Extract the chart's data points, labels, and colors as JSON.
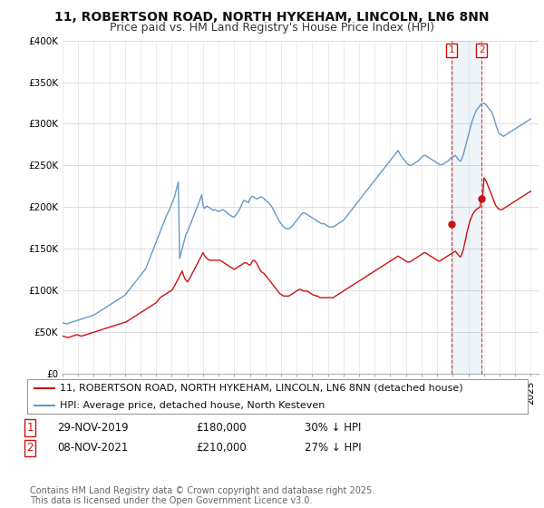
{
  "title_line1": "11, ROBERTSON ROAD, NORTH HYKEHAM, LINCOLN, LN6 8NN",
  "title_line2": "Price paid vs. HM Land Registry's House Price Index (HPI)",
  "ylim": [
    0,
    400000
  ],
  "yticks": [
    0,
    50000,
    100000,
    150000,
    200000,
    250000,
    300000,
    350000,
    400000
  ],
  "ytick_labels": [
    "£0",
    "£50K",
    "£100K",
    "£150K",
    "£200K",
    "£250K",
    "£300K",
    "£350K",
    "£400K"
  ],
  "xlim_start": 1995.0,
  "xlim_end": 2025.5,
  "background_color": "#ffffff",
  "plot_bg_color": "#ffffff",
  "grid_color": "#dddddd",
  "red_line_color": "#cc1111",
  "blue_line_color": "#6699cc",
  "transaction1": {
    "date_x": 2019.92,
    "price": 180000,
    "label": "1"
  },
  "transaction2": {
    "date_x": 2021.85,
    "price": 210000,
    "label": "2"
  },
  "legend_label_red": "11, ROBERTSON ROAD, NORTH HYKEHAM, LINCOLN, LN6 8NN (detached house)",
  "legend_label_blue": "HPI: Average price, detached house, North Kesteven",
  "footnote": "Contains HM Land Registry data © Crown copyright and database right 2025.\nThis data is licensed under the Open Government Licence v3.0.",
  "title_fontsize": 10,
  "subtitle_fontsize": 9,
  "tick_fontsize": 7.5,
  "legend_fontsize": 8,
  "annot_fontsize": 8.5,
  "footnote_fontsize": 7,
  "hpi_blue_x": [
    1995.0,
    1995.083,
    1995.167,
    1995.25,
    1995.333,
    1995.417,
    1995.5,
    1995.583,
    1995.667,
    1995.75,
    1995.833,
    1995.917,
    1996.0,
    1996.083,
    1996.167,
    1996.25,
    1996.333,
    1996.417,
    1996.5,
    1996.583,
    1996.667,
    1996.75,
    1996.833,
    1996.917,
    1997.0,
    1997.083,
    1997.167,
    1997.25,
    1997.333,
    1997.417,
    1997.5,
    1997.583,
    1997.667,
    1997.75,
    1997.833,
    1997.917,
    1998.0,
    1998.083,
    1998.167,
    1998.25,
    1998.333,
    1998.417,
    1998.5,
    1998.583,
    1998.667,
    1998.75,
    1998.833,
    1998.917,
    1999.0,
    1999.083,
    1999.167,
    1999.25,
    1999.333,
    1999.417,
    1999.5,
    1999.583,
    1999.667,
    1999.75,
    1999.833,
    1999.917,
    2000.0,
    2000.083,
    2000.167,
    2000.25,
    2000.333,
    2000.417,
    2000.5,
    2000.583,
    2000.667,
    2000.75,
    2000.833,
    2000.917,
    2001.0,
    2001.083,
    2001.167,
    2001.25,
    2001.333,
    2001.417,
    2001.5,
    2001.583,
    2001.667,
    2001.75,
    2001.833,
    2001.917,
    2002.0,
    2002.083,
    2002.167,
    2002.25,
    2002.333,
    2002.417,
    2002.5,
    2002.583,
    2002.667,
    2002.75,
    2002.833,
    2002.917,
    2003.0,
    2003.083,
    2003.167,
    2003.25,
    2003.333,
    2003.417,
    2003.5,
    2003.583,
    2003.667,
    2003.75,
    2003.833,
    2003.917,
    2004.0,
    2004.083,
    2004.167,
    2004.25,
    2004.333,
    2004.417,
    2004.5,
    2004.583,
    2004.667,
    2004.75,
    2004.833,
    2004.917,
    2005.0,
    2005.083,
    2005.167,
    2005.25,
    2005.333,
    2005.417,
    2005.5,
    2005.583,
    2005.667,
    2005.75,
    2005.833,
    2005.917,
    2006.0,
    2006.083,
    2006.167,
    2006.25,
    2006.333,
    2006.417,
    2006.5,
    2006.583,
    2006.667,
    2006.75,
    2006.833,
    2006.917,
    2007.0,
    2007.083,
    2007.167,
    2007.25,
    2007.333,
    2007.417,
    2007.5,
    2007.583,
    2007.667,
    2007.75,
    2007.833,
    2007.917,
    2008.0,
    2008.083,
    2008.167,
    2008.25,
    2008.333,
    2008.417,
    2008.5,
    2008.583,
    2008.667,
    2008.75,
    2008.833,
    2008.917,
    2009.0,
    2009.083,
    2009.167,
    2009.25,
    2009.333,
    2009.417,
    2009.5,
    2009.583,
    2009.667,
    2009.75,
    2009.833,
    2009.917,
    2010.0,
    2010.083,
    2010.167,
    2010.25,
    2010.333,
    2010.417,
    2010.5,
    2010.583,
    2010.667,
    2010.75,
    2010.833,
    2010.917,
    2011.0,
    2011.083,
    2011.167,
    2011.25,
    2011.333,
    2011.417,
    2011.5,
    2011.583,
    2011.667,
    2011.75,
    2011.833,
    2011.917,
    2012.0,
    2012.083,
    2012.167,
    2012.25,
    2012.333,
    2012.417,
    2012.5,
    2012.583,
    2012.667,
    2012.75,
    2012.833,
    2012.917,
    2013.0,
    2013.083,
    2013.167,
    2013.25,
    2013.333,
    2013.417,
    2013.5,
    2013.583,
    2013.667,
    2013.75,
    2013.833,
    2013.917,
    2014.0,
    2014.083,
    2014.167,
    2014.25,
    2014.333,
    2014.417,
    2014.5,
    2014.583,
    2014.667,
    2014.75,
    2014.833,
    2014.917,
    2015.0,
    2015.083,
    2015.167,
    2015.25,
    2015.333,
    2015.417,
    2015.5,
    2015.583,
    2015.667,
    2015.75,
    2015.833,
    2015.917,
    2016.0,
    2016.083,
    2016.167,
    2016.25,
    2016.333,
    2016.417,
    2016.5,
    2016.583,
    2016.667,
    2016.75,
    2016.833,
    2016.917,
    2017.0,
    2017.083,
    2017.167,
    2017.25,
    2017.333,
    2017.417,
    2017.5,
    2017.583,
    2017.667,
    2017.75,
    2017.833,
    2017.917,
    2018.0,
    2018.083,
    2018.167,
    2018.25,
    2018.333,
    2018.417,
    2018.5,
    2018.583,
    2018.667,
    2018.75,
    2018.833,
    2018.917,
    2019.0,
    2019.083,
    2019.167,
    2019.25,
    2019.333,
    2019.417,
    2019.5,
    2019.583,
    2019.667,
    2019.75,
    2019.833,
    2019.917,
    2020.0,
    2020.083,
    2020.167,
    2020.25,
    2020.333,
    2020.417,
    2020.5,
    2020.583,
    2020.667,
    2020.75,
    2020.833,
    2020.917,
    2021.0,
    2021.083,
    2021.167,
    2021.25,
    2021.333,
    2021.417,
    2021.5,
    2021.583,
    2021.667,
    2021.75,
    2021.833,
    2021.917,
    2022.0,
    2022.083,
    2022.167,
    2022.25,
    2022.333,
    2022.417,
    2022.5,
    2022.583,
    2022.667,
    2022.75,
    2022.833,
    2022.917,
    2023.0,
    2023.083,
    2023.167,
    2023.25,
    2023.333,
    2023.417,
    2023.5,
    2023.583,
    2023.667,
    2023.75,
    2023.833,
    2023.917,
    2024.0,
    2024.083,
    2024.167,
    2024.25,
    2024.333,
    2024.417,
    2024.5,
    2024.583,
    2024.667,
    2024.75,
    2024.833,
    2024.917,
    2025.0
  ],
  "hpi_blue_y": [
    61000,
    60500,
    60000,
    59500,
    60000,
    60500,
    61000,
    61500,
    62000,
    62500,
    63000,
    63500,
    64000,
    64500,
    65000,
    65500,
    66000,
    66500,
    67000,
    67500,
    68000,
    68500,
    69000,
    69500,
    70000,
    71000,
    72000,
    73000,
    74000,
    75000,
    76000,
    77000,
    78000,
    79000,
    80000,
    81000,
    82000,
    83000,
    84000,
    85000,
    86000,
    87000,
    88000,
    89000,
    90000,
    91000,
    92000,
    93000,
    94000,
    96000,
    98000,
    100000,
    102000,
    104000,
    106000,
    108000,
    110000,
    112000,
    114000,
    116000,
    118000,
    120000,
    122000,
    124000,
    126000,
    130000,
    134000,
    138000,
    142000,
    146000,
    150000,
    154000,
    158000,
    162000,
    166000,
    170000,
    174000,
    178000,
    182000,
    186000,
    190000,
    193000,
    196000,
    200000,
    204000,
    208000,
    212000,
    218000,
    224000,
    230000,
    138000,
    144000,
    150000,
    156000,
    162000,
    168000,
    170000,
    174000,
    178000,
    182000,
    186000,
    190000,
    194000,
    198000,
    202000,
    206000,
    210000,
    215000,
    202000,
    198000,
    200000,
    201000,
    200000,
    199000,
    198000,
    197000,
    196000,
    197000,
    196000,
    195000,
    195000,
    195000,
    196000,
    197000,
    196000,
    195000,
    194000,
    192000,
    191000,
    190000,
    189000,
    188000,
    188000,
    190000,
    192000,
    194000,
    197000,
    200000,
    204000,
    207000,
    208000,
    207000,
    206000,
    205000,
    210000,
    212000,
    213000,
    212000,
    211000,
    210000,
    210000,
    211000,
    212000,
    212000,
    211000,
    210000,
    208000,
    207000,
    206000,
    204000,
    202000,
    200000,
    197000,
    194000,
    191000,
    188000,
    185000,
    182000,
    180000,
    178000,
    176000,
    175000,
    174000,
    174000,
    174000,
    175000,
    176000,
    178000,
    180000,
    182000,
    184000,
    186000,
    188000,
    190000,
    192000,
    193000,
    193000,
    192000,
    191000,
    190000,
    189000,
    188000,
    187000,
    186000,
    185000,
    184000,
    183000,
    182000,
    181000,
    180000,
    180000,
    180000,
    179000,
    178000,
    177000,
    176000,
    176000,
    176000,
    176000,
    177000,
    178000,
    179000,
    180000,
    181000,
    182000,
    183000,
    184000,
    186000,
    188000,
    190000,
    192000,
    194000,
    196000,
    198000,
    200000,
    202000,
    204000,
    206000,
    208000,
    210000,
    212000,
    214000,
    216000,
    218000,
    220000,
    222000,
    224000,
    226000,
    228000,
    230000,
    232000,
    234000,
    236000,
    238000,
    240000,
    242000,
    244000,
    246000,
    248000,
    250000,
    252000,
    254000,
    256000,
    258000,
    260000,
    262000,
    264000,
    266000,
    268000,
    265000,
    262000,
    260000,
    258000,
    256000,
    254000,
    252000,
    251000,
    250000,
    250000,
    251000,
    252000,
    253000,
    254000,
    255000,
    256000,
    258000,
    260000,
    261000,
    262000,
    262000,
    261000,
    260000,
    259000,
    258000,
    257000,
    256000,
    255000,
    254000,
    253000,
    252000,
    251000,
    251000,
    251000,
    252000,
    253000,
    254000,
    255000,
    256000,
    258000,
    260000,
    260000,
    261000,
    262000,
    260000,
    258000,
    256000,
    255000,
    258000,
    262000,
    268000,
    274000,
    280000,
    286000,
    292000,
    298000,
    304000,
    308000,
    312000,
    316000,
    318000,
    320000,
    322000,
    324000,
    324000,
    325000,
    324000,
    322000,
    320000,
    318000,
    316000,
    314000,
    310000,
    305000,
    300000,
    295000,
    290000,
    288000,
    287000,
    286000,
    285000,
    286000,
    287000,
    288000,
    289000,
    290000,
    291000,
    292000,
    293000,
    294000,
    295000,
    296000,
    297000,
    298000,
    299000,
    300000,
    301000,
    302000,
    303000,
    304000,
    305000,
    306000
  ],
  "red_x": [
    1995.0,
    1995.083,
    1995.167,
    1995.25,
    1995.333,
    1995.417,
    1995.5,
    1995.583,
    1995.667,
    1995.75,
    1995.833,
    1995.917,
    1996.0,
    1996.083,
    1996.167,
    1996.25,
    1996.333,
    1996.417,
    1996.5,
    1996.583,
    1996.667,
    1996.75,
    1996.833,
    1996.917,
    1997.0,
    1997.083,
    1997.167,
    1997.25,
    1997.333,
    1997.417,
    1997.5,
    1997.583,
    1997.667,
    1997.75,
    1997.833,
    1997.917,
    1998.0,
    1998.083,
    1998.167,
    1998.25,
    1998.333,
    1998.417,
    1998.5,
    1998.583,
    1998.667,
    1998.75,
    1998.833,
    1998.917,
    1999.0,
    1999.083,
    1999.167,
    1999.25,
    1999.333,
    1999.417,
    1999.5,
    1999.583,
    1999.667,
    1999.75,
    1999.833,
    1999.917,
    2000.0,
    2000.083,
    2000.167,
    2000.25,
    2000.333,
    2000.417,
    2000.5,
    2000.583,
    2000.667,
    2000.75,
    2000.833,
    2000.917,
    2001.0,
    2001.083,
    2001.167,
    2001.25,
    2001.333,
    2001.417,
    2001.5,
    2001.583,
    2001.667,
    2001.75,
    2001.833,
    2001.917,
    2002.0,
    2002.083,
    2002.167,
    2002.25,
    2002.333,
    2002.417,
    2002.5,
    2002.583,
    2002.667,
    2002.75,
    2002.833,
    2002.917,
    2003.0,
    2003.083,
    2003.167,
    2003.25,
    2003.333,
    2003.417,
    2003.5,
    2003.583,
    2003.667,
    2003.75,
    2003.833,
    2003.917,
    2004.0,
    2004.083,
    2004.167,
    2004.25,
    2004.333,
    2004.417,
    2004.5,
    2004.583,
    2004.667,
    2004.75,
    2004.833,
    2004.917,
    2005.0,
    2005.083,
    2005.167,
    2005.25,
    2005.333,
    2005.417,
    2005.5,
    2005.583,
    2005.667,
    2005.75,
    2005.833,
    2005.917,
    2006.0,
    2006.083,
    2006.167,
    2006.25,
    2006.333,
    2006.417,
    2006.5,
    2006.583,
    2006.667,
    2006.75,
    2006.833,
    2006.917,
    2007.0,
    2007.083,
    2007.167,
    2007.25,
    2007.333,
    2007.417,
    2007.5,
    2007.583,
    2007.667,
    2007.75,
    2007.833,
    2007.917,
    2008.0,
    2008.083,
    2008.167,
    2008.25,
    2008.333,
    2008.417,
    2008.5,
    2008.583,
    2008.667,
    2008.75,
    2008.833,
    2008.917,
    2009.0,
    2009.083,
    2009.167,
    2009.25,
    2009.333,
    2009.417,
    2009.5,
    2009.583,
    2009.667,
    2009.75,
    2009.833,
    2009.917,
    2010.0,
    2010.083,
    2010.167,
    2010.25,
    2010.333,
    2010.417,
    2010.5,
    2010.583,
    2010.667,
    2010.75,
    2010.833,
    2010.917,
    2011.0,
    2011.083,
    2011.167,
    2011.25,
    2011.333,
    2011.417,
    2011.5,
    2011.583,
    2011.667,
    2011.75,
    2011.833,
    2011.917,
    2012.0,
    2012.083,
    2012.167,
    2012.25,
    2012.333,
    2012.417,
    2012.5,
    2012.583,
    2012.667,
    2012.75,
    2012.833,
    2012.917,
    2013.0,
    2013.083,
    2013.167,
    2013.25,
    2013.333,
    2013.417,
    2013.5,
    2013.583,
    2013.667,
    2013.75,
    2013.833,
    2013.917,
    2014.0,
    2014.083,
    2014.167,
    2014.25,
    2014.333,
    2014.417,
    2014.5,
    2014.583,
    2014.667,
    2014.75,
    2014.833,
    2014.917,
    2015.0,
    2015.083,
    2015.167,
    2015.25,
    2015.333,
    2015.417,
    2015.5,
    2015.583,
    2015.667,
    2015.75,
    2015.833,
    2015.917,
    2016.0,
    2016.083,
    2016.167,
    2016.25,
    2016.333,
    2016.417,
    2016.5,
    2016.583,
    2016.667,
    2016.75,
    2016.833,
    2016.917,
    2017.0,
    2017.083,
    2017.167,
    2017.25,
    2017.333,
    2017.417,
    2017.5,
    2017.583,
    2017.667,
    2017.75,
    2017.833,
    2017.917,
    2018.0,
    2018.083,
    2018.167,
    2018.25,
    2018.333,
    2018.417,
    2018.5,
    2018.583,
    2018.667,
    2018.75,
    2018.833,
    2018.917,
    2019.0,
    2019.083,
    2019.167,
    2019.25,
    2019.333,
    2019.417,
    2019.5,
    2019.583,
    2019.667,
    2019.75,
    2019.833,
    2019.917,
    2020.0,
    2020.083,
    2020.167,
    2020.25,
    2020.333,
    2020.417,
    2020.5,
    2020.583,
    2020.667,
    2020.75,
    2020.833,
    2020.917,
    2021.0,
    2021.083,
    2021.167,
    2021.25,
    2021.333,
    2021.417,
    2021.5,
    2021.583,
    2021.667,
    2021.75,
    2021.833,
    2021.917,
    2022.0,
    2022.083,
    2022.167,
    2022.25,
    2022.333,
    2022.417,
    2022.5,
    2022.583,
    2022.667,
    2022.75,
    2022.833,
    2022.917,
    2023.0,
    2023.083,
    2023.167,
    2023.25,
    2023.333,
    2023.417,
    2023.5,
    2023.583,
    2023.667,
    2023.75,
    2023.833,
    2023.917,
    2024.0,
    2024.083,
    2024.167,
    2024.25,
    2024.333,
    2024.417,
    2024.5,
    2024.583,
    2024.667,
    2024.75,
    2024.833,
    2024.917,
    2025.0
  ],
  "red_y": [
    45000,
    44500,
    44000,
    43500,
    43000,
    43500,
    44000,
    44500,
    45000,
    45500,
    46000,
    46500,
    46000,
    45500,
    45000,
    45000,
    45500,
    46000,
    46500,
    47000,
    47500,
    48000,
    48500,
    49000,
    49500,
    50000,
    50500,
    51000,
    51500,
    52000,
    52500,
    53000,
    53500,
    54000,
    54500,
    55000,
    55500,
    56000,
    56500,
    57000,
    57500,
    58000,
    58500,
    59000,
    59500,
    60000,
    60500,
    61000,
    61500,
    62000,
    63000,
    64000,
    65000,
    66000,
    67000,
    68000,
    69000,
    70000,
    71000,
    72000,
    73000,
    74000,
    75000,
    76000,
    77000,
    78000,
    79000,
    80000,
    81000,
    82000,
    83000,
    84000,
    85000,
    87000,
    89000,
    91000,
    92000,
    93000,
    94000,
    95000,
    96000,
    97000,
    98000,
    99000,
    100000,
    102000,
    105000,
    108000,
    111000,
    114000,
    117000,
    120000,
    123000,
    118000,
    114000,
    112000,
    110000,
    112000,
    115000,
    118000,
    121000,
    124000,
    127000,
    130000,
    133000,
    136000,
    139000,
    142000,
    145000,
    142000,
    140000,
    138000,
    137000,
    136000,
    136000,
    136000,
    136000,
    136000,
    136000,
    136000,
    136000,
    136000,
    135000,
    134000,
    133000,
    132000,
    131000,
    130000,
    129000,
    128000,
    127000,
    126000,
    125000,
    126000,
    127000,
    128000,
    129000,
    130000,
    131000,
    132000,
    133000,
    133000,
    132000,
    131000,
    130000,
    132000,
    135000,
    136000,
    135000,
    133000,
    130000,
    127000,
    124000,
    122000,
    121000,
    120000,
    118000,
    116000,
    114000,
    112000,
    110000,
    108000,
    106000,
    104000,
    102000,
    100000,
    98000,
    96000,
    95000,
    94000,
    93000,
    93000,
    93000,
    93000,
    93000,
    94000,
    95000,
    96000,
    97000,
    98000,
    99000,
    100000,
    101000,
    101000,
    100000,
    99000,
    99000,
    99000,
    99000,
    98000,
    97000,
    96000,
    95000,
    94000,
    94000,
    93000,
    93000,
    92000,
    91000,
    91000,
    91000,
    91000,
    91000,
    91000,
    91000,
    91000,
    91000,
    91000,
    91000,
    92000,
    93000,
    94000,
    95000,
    96000,
    97000,
    98000,
    99000,
    100000,
    101000,
    102000,
    103000,
    104000,
    105000,
    106000,
    107000,
    108000,
    109000,
    110000,
    111000,
    112000,
    113000,
    114000,
    115000,
    116000,
    117000,
    118000,
    119000,
    120000,
    121000,
    122000,
    123000,
    124000,
    125000,
    126000,
    127000,
    128000,
    129000,
    130000,
    131000,
    132000,
    133000,
    134000,
    135000,
    136000,
    137000,
    138000,
    139000,
    140000,
    141000,
    140000,
    139000,
    138000,
    137000,
    136000,
    135000,
    134000,
    134000,
    134000,
    135000,
    136000,
    137000,
    138000,
    139000,
    140000,
    141000,
    142000,
    143000,
    144000,
    145000,
    145000,
    144000,
    143000,
    142000,
    141000,
    140000,
    139000,
    138000,
    137000,
    136000,
    135000,
    135000,
    136000,
    137000,
    138000,
    139000,
    140000,
    141000,
    142000,
    143000,
    144000,
    145000,
    146000,
    147000,
    145000,
    143000,
    141000,
    140000,
    143000,
    148000,
    155000,
    162000,
    170000,
    176000,
    182000,
    186000,
    190000,
    193000,
    195000,
    197000,
    198000,
    199000,
    200000,
    210000,
    210000,
    235000,
    233000,
    230000,
    226000,
    222000,
    218000,
    214000,
    210000,
    206000,
    202000,
    200000,
    198000,
    197000,
    197000,
    197000,
    198000,
    199000,
    200000,
    201000,
    202000,
    203000,
    204000,
    205000,
    206000,
    207000,
    208000,
    209000,
    210000,
    211000,
    212000,
    213000,
    214000,
    215000,
    216000,
    217000,
    218000,
    219000
  ]
}
